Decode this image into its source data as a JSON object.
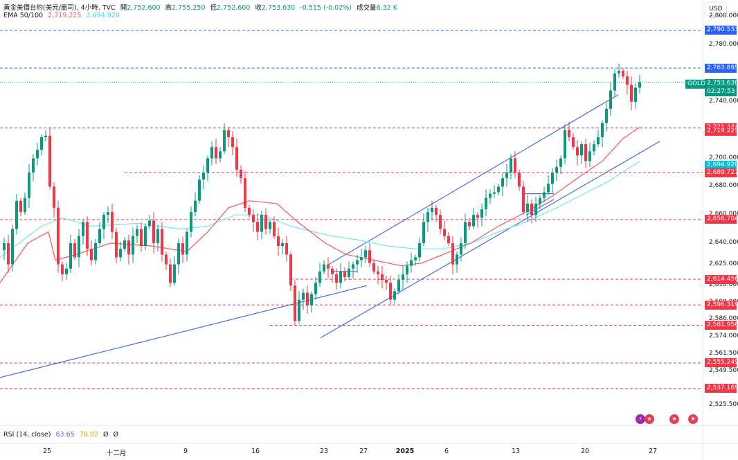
{
  "header": {
    "symbol": "黃金美價台約(美元/盎司), 4小時, TVC",
    "open_label": "開",
    "open": "2,752.600",
    "high_label": "高",
    "high": "2,755.250",
    "low_label": "低",
    "low": "2,752.600",
    "close_label": "收",
    "close": "2,753.630",
    "change": "-0.515 (-0.02%)",
    "volume_label": "成交量",
    "volume": "6.32 K",
    "ema_label": "EMA 50/100",
    "ema50": "2,719.225",
    "ema100": "2,694.920"
  },
  "currency": "USD",
  "price_tag": {
    "symbol": "GOLD",
    "price": "2,753.630",
    "countdown": "02:27:53"
  },
  "rsi": {
    "label": "RSI (14, close)",
    "v1": "63.65",
    "v2": "70.02",
    "v3": "Ø",
    "v4": "Ø"
  },
  "colors": {
    "up": "#089981",
    "down": "#f23645",
    "ema50": "#f7525f",
    "ema100": "#6ee6f0",
    "trend": "#4a6bdf",
    "blue_level": "#2962ff",
    "red_level": "#f23645"
  },
  "chart_data": {
    "type": "candlestick",
    "ylim": [
      2518,
      2812
    ],
    "y_ticks": [
      "2,800.000",
      "2,780.000",
      "2,740.000",
      "2,700.000",
      "2,680.000",
      "2,660.000",
      "2,640.000",
      "2,625.000",
      "2,610.000",
      "2,598.000",
      "2,586.000",
      "2,574.000",
      "2,561.500",
      "2,549.500",
      "2,525.500"
    ],
    "x_ticks": [
      "25",
      "十二月",
      "9",
      "16",
      "23",
      "27",
      "2025",
      "6",
      "13",
      "20",
      "27"
    ],
    "levels": [
      {
        "price": "2,790.533",
        "color": "blue"
      },
      {
        "price": "2,763.895",
        "color": "blue"
      },
      {
        "price": "2,721.444",
        "color": "red"
      },
      {
        "price": "2,719.225",
        "color": "red"
      },
      {
        "price": "2,694.920",
        "color": "cyan"
      },
      {
        "price": "2,689.727",
        "color": "red"
      },
      {
        "price": "2,656.704",
        "color": "red"
      },
      {
        "price": "2,614.456",
        "color": "red"
      },
      {
        "price": "2,596.319",
        "color": "red"
      },
      {
        "price": "2,581.956",
        "color": "red"
      },
      {
        "price": "2,555.249",
        "color": "red"
      },
      {
        "price": "2,537.169",
        "color": "red"
      }
    ],
    "close_path": [
      [
        0,
        2635
      ],
      [
        6,
        2640
      ],
      [
        12,
        2625
      ],
      [
        18,
        2650
      ],
      [
        24,
        2670
      ],
      [
        30,
        2662
      ],
      [
        36,
        2672
      ],
      [
        42,
        2690
      ],
      [
        48,
        2700
      ],
      [
        54,
        2706
      ],
      [
        60,
        2715
      ],
      [
        66,
        2716
      ],
      [
        72,
        2680
      ],
      [
        78,
        2665
      ],
      [
        84,
        2625
      ],
      [
        90,
        2618
      ],
      [
        96,
        2622
      ],
      [
        102,
        2640
      ],
      [
        108,
        2630
      ],
      [
        114,
        2645
      ],
      [
        120,
        2655
      ],
      [
        126,
        2636
      ],
      [
        132,
        2628
      ],
      [
        138,
        2640
      ],
      [
        144,
        2650
      ],
      [
        150,
        2660
      ],
      [
        156,
        2662
      ],
      [
        162,
        2648
      ],
      [
        168,
        2630
      ],
      [
        174,
        2636
      ],
      [
        180,
        2642
      ],
      [
        186,
        2632
      ],
      [
        192,
        2645
      ],
      [
        198,
        2650
      ],
      [
        204,
        2638
      ],
      [
        210,
        2652
      ],
      [
        216,
        2656
      ],
      [
        222,
        2640
      ],
      [
        228,
        2650
      ],
      [
        234,
        2632
      ],
      [
        240,
        2625
      ],
      [
        246,
        2612
      ],
      [
        252,
        2625
      ],
      [
        258,
        2640
      ],
      [
        264,
        2632
      ],
      [
        270,
        2648
      ],
      [
        276,
        2662
      ],
      [
        282,
        2670
      ],
      [
        288,
        2685
      ],
      [
        294,
        2690
      ],
      [
        300,
        2700
      ],
      [
        306,
        2708
      ],
      [
        312,
        2700
      ],
      [
        318,
        2705
      ],
      [
        324,
        2720
      ],
      [
        330,
        2715
      ],
      [
        336,
        2708
      ],
      [
        342,
        2692
      ],
      [
        348,
        2686
      ],
      [
        354,
        2665
      ],
      [
        360,
        2660
      ],
      [
        366,
        2655
      ],
      [
        372,
        2648
      ],
      [
        378,
        2660
      ],
      [
        384,
        2650
      ],
      [
        390,
        2655
      ],
      [
        396,
        2645
      ],
      [
        402,
        2638
      ],
      [
        408,
        2640
      ],
      [
        414,
        2632
      ],
      [
        420,
        2610
      ],
      [
        426,
        2585
      ],
      [
        432,
        2600
      ],
      [
        438,
        2605
      ],
      [
        444,
        2596
      ],
      [
        450,
        2604
      ],
      [
        456,
        2612
      ],
      [
        462,
        2620
      ],
      [
        468,
        2625
      ],
      [
        474,
        2622
      ],
      [
        480,
        2618
      ],
      [
        486,
        2612
      ],
      [
        492,
        2620
      ],
      [
        498,
        2616
      ],
      [
        504,
        2622
      ],
      [
        510,
        2625
      ],
      [
        516,
        2628
      ],
      [
        522,
        2630
      ],
      [
        528,
        2635
      ],
      [
        534,
        2626
      ],
      [
        540,
        2620
      ],
      [
        546,
        2618
      ],
      [
        552,
        2614
      ],
      [
        558,
        2612
      ],
      [
        564,
        2600
      ],
      [
        570,
        2606
      ],
      [
        576,
        2614
      ],
      [
        582,
        2618
      ],
      [
        588,
        2624
      ],
      [
        594,
        2628
      ],
      [
        600,
        2630
      ],
      [
        606,
        2640
      ],
      [
        612,
        2655
      ],
      [
        618,
        2662
      ],
      [
        624,
        2665
      ],
      [
        630,
        2660
      ],
      [
        636,
        2650
      ],
      [
        642,
        2645
      ],
      [
        648,
        2640
      ],
      [
        654,
        2625
      ],
      [
        660,
        2632
      ],
      [
        666,
        2640
      ],
      [
        672,
        2655
      ],
      [
        678,
        2652
      ],
      [
        684,
        2660
      ],
      [
        690,
        2658
      ],
      [
        696,
        2664
      ],
      [
        702,
        2672
      ],
      [
        708,
        2675
      ],
      [
        714,
        2676
      ],
      [
        720,
        2680
      ],
      [
        726,
        2686
      ],
      [
        732,
        2690
      ],
      [
        738,
        2700
      ],
      [
        744,
        2690
      ],
      [
        750,
        2680
      ],
      [
        756,
        2662
      ],
      [
        762,
        2668
      ],
      [
        768,
        2660
      ],
      [
        774,
        2668
      ],
      [
        780,
        2672
      ],
      [
        786,
        2676
      ],
      [
        792,
        2682
      ],
      [
        798,
        2690
      ],
      [
        804,
        2694
      ],
      [
        810,
        2700
      ],
      [
        816,
        2720
      ],
      [
        822,
        2715
      ],
      [
        828,
        2708
      ],
      [
        834,
        2702
      ],
      [
        840,
        2710
      ],
      [
        846,
        2698
      ],
      [
        852,
        2705
      ],
      [
        858,
        2710
      ],
      [
        864,
        2715
      ],
      [
        870,
        2725
      ],
      [
        876,
        2735
      ],
      [
        882,
        2748
      ],
      [
        888,
        2760
      ],
      [
        894,
        2762
      ],
      [
        900,
        2758
      ],
      [
        906,
        2752
      ],
      [
        912,
        2740
      ],
      [
        918,
        2750
      ],
      [
        924,
        2754
      ]
    ],
    "ema50_path": [
      [
        0,
        2612
      ],
      [
        40,
        2640
      ],
      [
        70,
        2648
      ],
      [
        80,
        2628
      ],
      [
        110,
        2632
      ],
      [
        160,
        2640
      ],
      [
        220,
        2638
      ],
      [
        270,
        2634
      ],
      [
        300,
        2648
      ],
      [
        330,
        2665
      ],
      [
        360,
        2670
      ],
      [
        400,
        2668
      ],
      [
        430,
        2655
      ],
      [
        470,
        2640
      ],
      [
        500,
        2632
      ],
      [
        540,
        2628
      ],
      [
        580,
        2624
      ],
      [
        610,
        2626
      ],
      [
        640,
        2632
      ],
      [
        680,
        2640
      ],
      [
        720,
        2652
      ],
      [
        760,
        2662
      ],
      [
        800,
        2674
      ],
      [
        840,
        2688
      ],
      [
        870,
        2698
      ],
      [
        900,
        2714
      ],
      [
        924,
        2722
      ]
    ],
    "ema100_path": [
      [
        0,
        2630
      ],
      [
        60,
        2652
      ],
      [
        90,
        2658
      ],
      [
        130,
        2652
      ],
      [
        200,
        2654
      ],
      [
        260,
        2650
      ],
      [
        300,
        2652
      ],
      [
        340,
        2660
      ],
      [
        380,
        2660
      ],
      [
        420,
        2652
      ],
      [
        470,
        2646
      ],
      [
        520,
        2642
      ],
      [
        560,
        2638
      ],
      [
        600,
        2636
      ],
      [
        640,
        2636
      ],
      [
        680,
        2640
      ],
      [
        720,
        2648
      ],
      [
        760,
        2655
      ],
      [
        800,
        2664
      ],
      [
        840,
        2674
      ],
      [
        880,
        2684
      ],
      [
        924,
        2698
      ]
    ],
    "trend_lines": [
      {
        "from": [
          0,
          2545
        ],
        "to": [
          530,
          2610
        ]
      },
      {
        "from": [
          475,
          2625
        ],
        "to": [
          893,
          2745
        ]
      },
      {
        "from": [
          463,
          2573
        ],
        "to": [
          953,
          2712
        ]
      },
      {
        "from": [
          478,
          2620
        ],
        "to": [
          516,
          2620
        ]
      },
      {
        "from": [
          756,
          2675
        ],
        "to": [
          800,
          2675
        ]
      },
      {
        "from": [
          760,
          2660
        ],
        "to": [
          800,
          2671
        ]
      }
    ]
  }
}
